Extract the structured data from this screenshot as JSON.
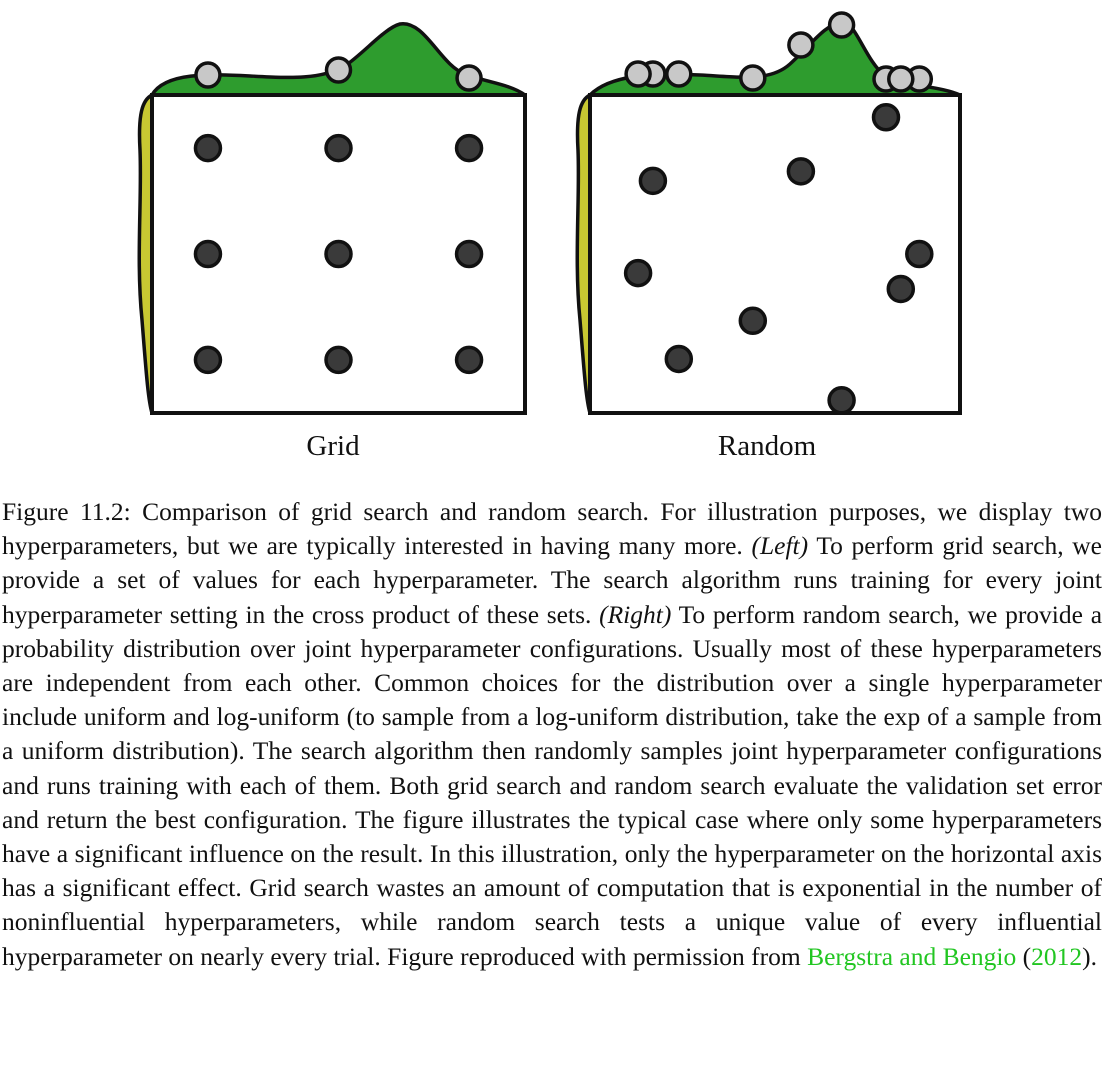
{
  "figure": {
    "grid_label": "Grid",
    "random_label": "Random",
    "colors": {
      "marginal_fill": "#2e9c2e",
      "side_marginal_fill": "#c8c832",
      "point_fill": "#3a3a3a",
      "projected_point_fill": "#c8c8c8",
      "stroke": "#111111"
    },
    "panels": [
      {
        "name": "grid",
        "points": [
          [
            0.15,
            0.167
          ],
          [
            0.5,
            0.167
          ],
          [
            0.85,
            0.167
          ],
          [
            0.15,
            0.5
          ],
          [
            0.5,
            0.5
          ],
          [
            0.85,
            0.5
          ],
          [
            0.15,
            0.833
          ],
          [
            0.5,
            0.833
          ],
          [
            0.85,
            0.833
          ]
        ]
      },
      {
        "name": "random",
        "points": [
          [
            0.17,
            0.27
          ],
          [
            0.57,
            0.24
          ],
          [
            0.8,
            0.07
          ],
          [
            0.13,
            0.56
          ],
          [
            0.44,
            0.71
          ],
          [
            0.24,
            0.83
          ],
          [
            0.89,
            0.5
          ],
          [
            0.84,
            0.61
          ],
          [
            0.68,
            0.96
          ]
        ]
      }
    ]
  },
  "caption": {
    "p1": "Figure 11.2: Comparison of grid search and random search. For illustration purposes, we display two hyperparameters, but we are typically interested in having many more.",
    "left": "(Left)",
    "p2": "To perform grid search, we provide a set of values for each hyperparameter. The search algorithm runs training for every joint hyperparameter setting in the cross product of these sets.",
    "right": "(Right)",
    "p3": "To perform random search, we provide a probability distribution over joint hyperparameter configurations. Usually most of these hyperparameters are independent from each other. Common choices for the distribution over a single hyperparameter include uniform and log-uniform (to sample from a log-uniform distribution, take the exp of a sample from a uniform distribution). The search algorithm then randomly samples joint hyperparameter configurations and runs training with each of them. Both grid search and random search evaluate the validation set error and return the best configuration. The figure illustrates the typical case where only some hyperparameters have a significant influence on the result. In this illustration, only the hyperparameter on the horizontal axis has a significant effect. Grid search wastes an amount of computation that is exponential in the number of noninfluential hyperparameters, while random search tests a unique value of every influential hyperparameter on nearly every trial. Figure reproduced with permission from",
    "cite_authors": "Bergstra and Bengio",
    "cite_open": "(",
    "cite_year": "2012",
    "cite_close": ")."
  }
}
